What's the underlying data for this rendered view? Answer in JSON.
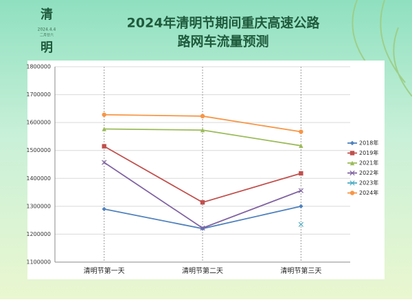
{
  "header": {
    "char1": "清",
    "date": "2024.4.4",
    "lunar": "二月廿六",
    "char2": "明"
  },
  "chart_data": {
    "type": "line",
    "title": "2024年清明节期间重庆高速公路",
    "subtitle": "路网车流量预测",
    "categories": [
      "清明节第一天",
      "清明节第二天",
      "清明节第三天"
    ],
    "series": [
      {
        "name": "2018年",
        "color": "#4f81bd",
        "marker": "diamond",
        "values": [
          1290000,
          1220000,
          1300000
        ]
      },
      {
        "name": "2019年",
        "color": "#c0504d",
        "marker": "square",
        "values": [
          1515000,
          1314000,
          1418000
        ]
      },
      {
        "name": "2021年",
        "color": "#9bbb59",
        "marker": "triangle",
        "values": [
          1577000,
          1573000,
          1517000
        ]
      },
      {
        "name": "2022年",
        "color": "#8064a2",
        "marker": "x",
        "values": [
          1457000,
          1222000,
          1356000
        ]
      },
      {
        "name": "2023年",
        "color": "#4bacc6",
        "marker": "x",
        "values": [
          null,
          null,
          1235000
        ]
      },
      {
        "name": "2024年",
        "color": "#f79646",
        "marker": "circle",
        "values": [
          1628000,
          1623000,
          1567000
        ]
      }
    ],
    "ylim": [
      1100000,
      1800000
    ],
    "yticks": [
      1100000,
      1200000,
      1300000,
      1400000,
      1500000,
      1600000,
      1700000,
      1800000
    ],
    "grid": true,
    "legend": "right"
  }
}
